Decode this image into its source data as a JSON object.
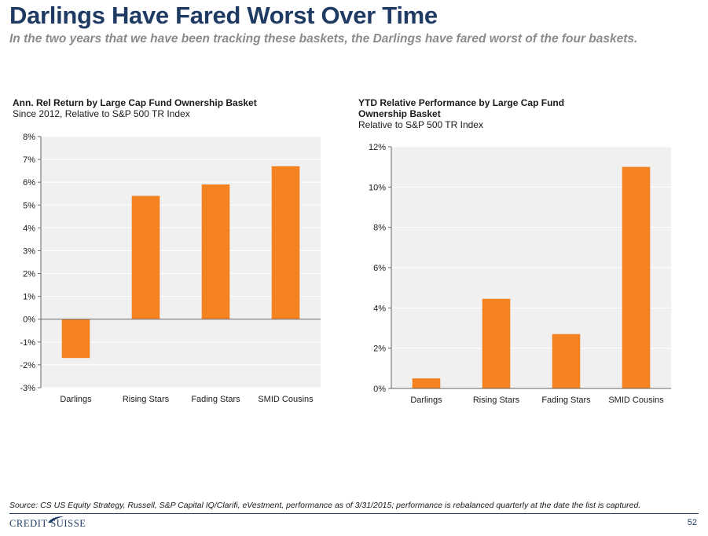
{
  "header": {
    "title": "Darlings Have Fared Worst Over Time",
    "subtitle": "In the two years that we have been tracking these baskets, the Darlings have fared worst of the four baskets."
  },
  "chart_left": {
    "title": "Ann. Rel Return by Large Cap Fund Ownership Basket",
    "subtitle": "Since 2012, Relative to S&P 500 TR Index"
  },
  "chart_right": {
    "title_line1": "YTD  Relative Performance by Large Cap Fund",
    "title_line2": "Ownership Basket",
    "subtitle": "Relative to S&P 500 TR Index"
  },
  "chart_data": [
    {
      "type": "bar",
      "title": "Ann. Rel Return by Large Cap Fund Ownership Basket",
      "subtitle": "Since 2012, Relative to S&P 500 TR Index",
      "categories": [
        "Darlings",
        "Rising Stars",
        "Fading Stars",
        "SMID Cousins"
      ],
      "values": [
        -1.7,
        5.4,
        5.9,
        6.7
      ],
      "ylim": [
        -3,
        8
      ],
      "yticks": [
        -3,
        -2,
        -1,
        0,
        1,
        2,
        3,
        4,
        5,
        6,
        7,
        8
      ],
      "tick_suffix": "%",
      "bar_color": "#f58220",
      "plot_background": "#f0f0f0",
      "grid": true
    },
    {
      "type": "bar",
      "title": "YTD  Relative Performance by Large Cap Fund Ownership Basket",
      "subtitle": "Relative to S&P 500 TR Index",
      "categories": [
        "Darlings",
        "Rising Stars",
        "Fading Stars",
        "SMID Cousins"
      ],
      "values": [
        0.5,
        4.45,
        2.7,
        11.0
      ],
      "ylim": [
        0,
        12
      ],
      "yticks": [
        0,
        2,
        4,
        6,
        8,
        10,
        12
      ],
      "tick_suffix": "%",
      "bar_color": "#f58220",
      "plot_background": "#f0f0f0",
      "grid": true
    }
  ],
  "footer": {
    "source": "Source: CS US Equity Strategy, Russell, S&P Capital IQ/Clarifi, eVestment, performance as of 3/31/2015; performance is rebalanced quarterly at the date the list is captured.",
    "logo_text": "CREDIT SUISSE",
    "page_number": "52",
    "brand_color": "#1f3b63"
  }
}
